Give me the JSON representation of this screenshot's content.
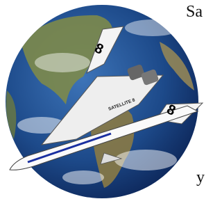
{
  "page_text": {
    "corner_top": "Sa",
    "fin_top": "8",
    "fuselage": "SATELLITE 8",
    "fin_right": "8",
    "corner_bottom": "y"
  }
}
